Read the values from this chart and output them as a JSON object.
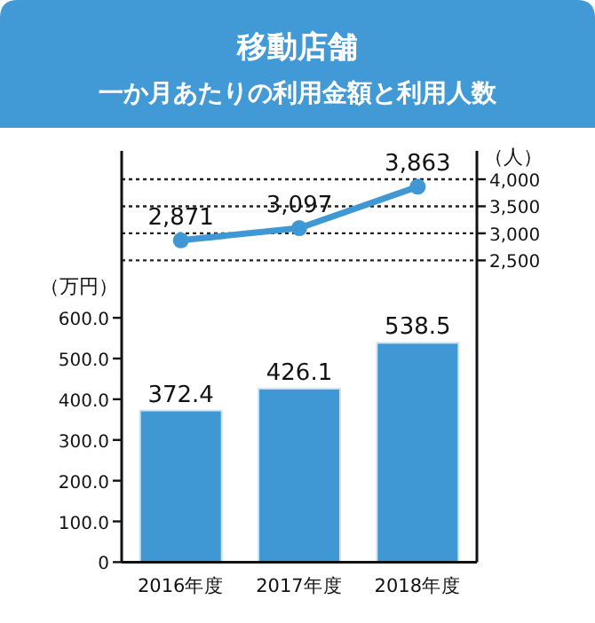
{
  "chart_data": {
    "type": "bar",
    "title": "移動店舗",
    "subtitle": "一か月あたりの利用金額と利用人数",
    "categories": [
      "2016年度",
      "2017年度",
      "2018年度"
    ],
    "series": [
      {
        "color": "#3f98d4",
        "values": [
          372.4,
          426.1,
          538.5
        ],
        "value_labels": [
          "372.4",
          "426.1",
          "538.5"
        ]
      },
      {
        "type": "line",
        "axis": "y2",
        "color": "#3f98d4",
        "marker": "circle",
        "line_style": "solid",
        "values": [
          2871,
          3097,
          3863
        ],
        "value_labels": [
          "2,871",
          "3,097",
          "3,863"
        ]
      }
    ],
    "ylabel": "（万円）",
    "y2label": "（人）",
    "ylim": [
      0,
      1010
    ],
    "yticks": [
      {
        "value": 0,
        "label": "0"
      },
      {
        "value": 100,
        "label": "100.0"
      },
      {
        "value": 200,
        "label": "200.0"
      },
      {
        "value": 300,
        "label": "300.0"
      },
      {
        "value": 400,
        "label": "400.0"
      },
      {
        "value": 500,
        "label": "500.0"
      },
      {
        "value": 600,
        "label": "600.0"
      }
    ],
    "y2lim": [
      -3080,
      4525
    ],
    "y2ticks": [
      {
        "value": 2500,
        "label": "2,500"
      },
      {
        "value": 3000,
        "label": "3,000"
      },
      {
        "value": 3500,
        "label": "3,500"
      },
      {
        "value": 4000,
        "label": "4,000"
      }
    ],
    "grid": "y2"
  }
}
